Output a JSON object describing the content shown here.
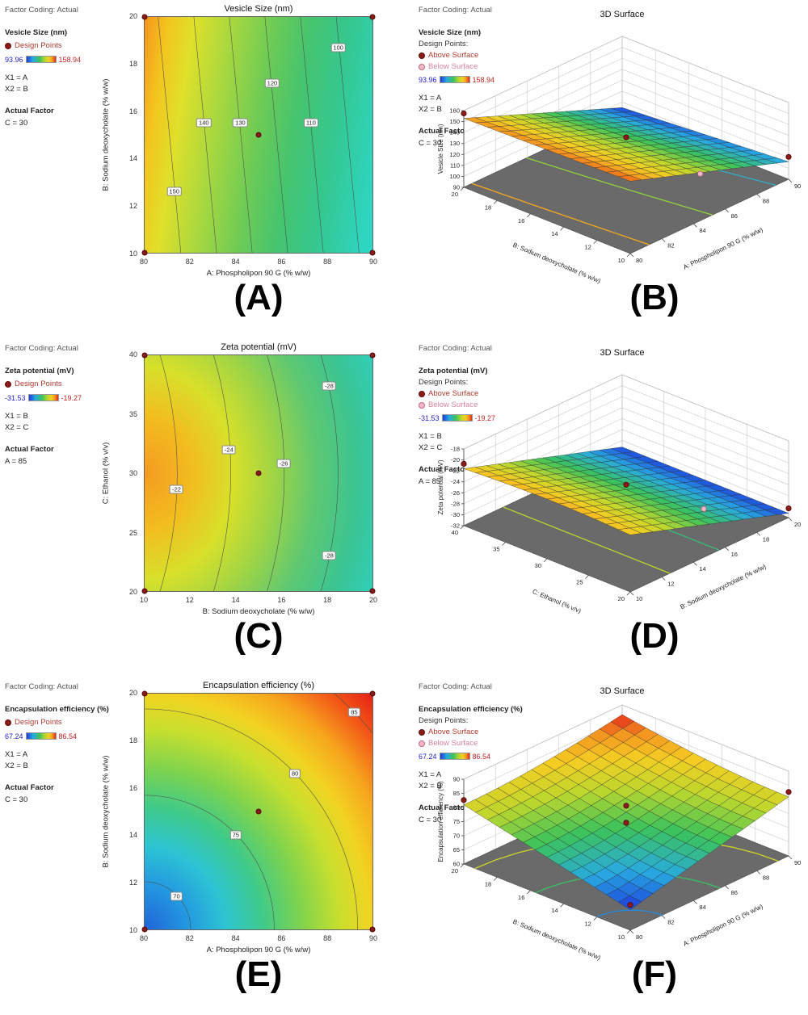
{
  "colors": {
    "design_point": "#8b1a1a",
    "below_surface_point": "#f2b8c6",
    "scale_min_text": "#2424c8",
    "scale_max_text": "#c22222",
    "floor_plane": "#6a6a6a"
  },
  "colormap": [
    "#1e3cdc",
    "#28aae1",
    "#3cc35a",
    "#bed72d",
    "#f5cd23",
    "#f39620",
    "#e62319"
  ],
  "chart_data": [
    {
      "type": "heatmap",
      "subtype": "contour-2d",
      "panel_label": "(A)",
      "title": "Vesicle Size (nm)",
      "legend": {
        "factor_coding": "Factor Coding: Actual",
        "response": "Vesicle Size (nm)",
        "design_points": "Design Points",
        "scale_min": "93.96",
        "scale_max": "158.94",
        "x1": "X1 = A",
        "x2": "X2 = B",
        "actual_factor_label": "Actual Factor",
        "actual_factor": "C = 30"
      },
      "xaxis": {
        "label": "A: Phospholipon 90 G (% w/w)",
        "range": [
          80,
          90
        ],
        "ticks": [
          "80",
          "82",
          "84",
          "86",
          "88",
          "90"
        ]
      },
      "yaxis": {
        "label": "B: Sodium deoxycholate (% w/w)",
        "range": [
          10,
          20
        ],
        "ticks": [
          "10",
          "12",
          "14",
          "16",
          "18",
          "20"
        ]
      },
      "value_range": [
        93.96,
        158.94
      ],
      "contour_levels": [
        150,
        140,
        130,
        120,
        110,
        100
      ],
      "contour_labels": [
        {
          "value": "150",
          "x": 13,
          "y": 74
        },
        {
          "value": "140",
          "x": 26,
          "y": 45
        },
        {
          "value": "130",
          "x": 42,
          "y": 45
        },
        {
          "value": "120",
          "x": 56,
          "y": 28
        },
        {
          "value": "110",
          "x": 73,
          "y": 45
        },
        {
          "value": "100",
          "x": 85,
          "y": 13
        }
      ],
      "design_points": [
        [
          80,
          10
        ],
        [
          80,
          20
        ],
        [
          90,
          10
        ],
        [
          90,
          20
        ],
        [
          85,
          15
        ]
      ]
    },
    {
      "type": "heatmap",
      "subtype": "3d-surface",
      "panel_label": "(B)",
      "title": "3D Surface",
      "legend": {
        "factor_coding": "Factor Coding: Actual",
        "response": "Vesicle Size (nm)",
        "design_points": "Design Points:",
        "above_surface": "Above Surface",
        "below_surface": "Below Surface",
        "scale_min": "93.96",
        "scale_max": "158.94",
        "x1": "X1 = A",
        "x2": "X2 = B",
        "actual_factor_label": "Actual Factor",
        "actual_factor": "C = 30"
      },
      "axis_right": {
        "label": "A: Phospholipon 90 G (% w/w)",
        "ticks": [
          "80",
          "82",
          "84",
          "86",
          "88",
          "90"
        ]
      },
      "axis_left": {
        "label": "B: Sodium deoxycholate (% w/w)",
        "ticks": [
          "10",
          "12",
          "14",
          "16",
          "18",
          "20"
        ]
      },
      "axis_z": {
        "label": "Vesicle Size (nm)",
        "ticks": [
          "90",
          "100",
          "110",
          "120",
          "130",
          "140",
          "150",
          "160"
        ]
      },
      "value_range": [
        93.96,
        158.94
      ],
      "corner_values_est": {
        "A80_B10": 156,
        "A80_B20": 153,
        "A90_B10": 106,
        "A90_B20": 95
      },
      "design_points": [
        [
          80,
          10
        ],
        [
          80,
          20
        ],
        [
          90,
          10
        ],
        [
          90,
          20
        ],
        [
          85,
          15
        ]
      ]
    },
    {
      "type": "heatmap",
      "subtype": "contour-2d",
      "panel_label": "(C)",
      "title": "Zeta potential (mV)",
      "legend": {
        "factor_coding": "Factor Coding: Actual",
        "response": "Zeta potential (mV)",
        "design_points": "Design Points",
        "scale_min": "-31.53",
        "scale_max": "-19.27",
        "x1": "X1 = B",
        "x2": "X2 = C",
        "actual_factor_label": "Actual Factor",
        "actual_factor": "A = 85"
      },
      "xaxis": {
        "label": "B: Sodium deoxycholate (% w/w)",
        "range": [
          10,
          20
        ],
        "ticks": [
          "10",
          "12",
          "14",
          "16",
          "18",
          "20"
        ]
      },
      "yaxis": {
        "label": "C: Ethanol (% v/v)",
        "range": [
          20,
          40
        ],
        "ticks": [
          "20",
          "25",
          "30",
          "35",
          "40"
        ]
      },
      "value_range": [
        -31.53,
        -19.27
      ],
      "contour_levels": [
        -22,
        -24,
        -26,
        -28
      ],
      "contour_labels": [
        {
          "value": "-22",
          "x": 14,
          "y": 57
        },
        {
          "value": "-24",
          "x": 37,
          "y": 40
        },
        {
          "value": "-26",
          "x": 61,
          "y": 46
        },
        {
          "value": "-28",
          "x": 81,
          "y": 13
        },
        {
          "value": "-28",
          "x": 81,
          "y": 85
        }
      ],
      "design_points": [
        [
          10,
          20
        ],
        [
          10,
          40
        ],
        [
          20,
          20
        ],
        [
          20,
          40
        ],
        [
          15,
          30
        ]
      ]
    },
    {
      "type": "heatmap",
      "subtype": "3d-surface",
      "panel_label": "(D)",
      "title": "3D Surface",
      "legend": {
        "factor_coding": "Factor Coding: Actual",
        "response": "Zeta potential (mV)",
        "design_points": "Design Points:",
        "above_surface": "Above Surface",
        "below_surface": "Below Surface",
        "scale_min": "-31.53",
        "scale_max": "-19.27",
        "x1": "X1 = B",
        "x2": "X2 = C",
        "actual_factor_label": "Actual Factor",
        "actual_factor": "A = 85"
      },
      "axis_right": {
        "label": "B: Sodium deoxycholate (% w/w)",
        "ticks": [
          "10",
          "12",
          "14",
          "16",
          "18",
          "20"
        ]
      },
      "axis_left": {
        "label": "C: Ethanol (% v/v)",
        "ticks": [
          "20",
          "25",
          "30",
          "35",
          "40"
        ]
      },
      "axis_z": {
        "label": "Zeta potential (mV)",
        "ticks": [
          "-32",
          "-30",
          "-28",
          "-26",
          "-24",
          "-22",
          "-20",
          "-18"
        ]
      },
      "value_range": [
        -31.53,
        -19.27
      ],
      "corner_values_est": {
        "B10": -21.6,
        "B20": -31.2
      },
      "design_points": [
        [
          10,
          20
        ],
        [
          10,
          40
        ],
        [
          20,
          20
        ],
        [
          20,
          40
        ],
        [
          15,
          30
        ]
      ]
    },
    {
      "type": "heatmap",
      "subtype": "contour-2d",
      "panel_label": "(E)",
      "title": "Encapsulation efficiency (%)",
      "legend": {
        "factor_coding": "Factor Coding: Actual",
        "response": "Encapsulation efficiency (%)",
        "design_points": "Design Points",
        "scale_min": "67.24",
        "scale_max": "86.54",
        "x1": "X1 = A",
        "x2": "X2 = B",
        "actual_factor_label": "Actual Factor",
        "actual_factor": "C = 30"
      },
      "xaxis": {
        "label": "A: Phospholipon 90 G (% w/w)",
        "range": [
          80,
          90
        ],
        "ticks": [
          "80",
          "82",
          "84",
          "86",
          "88",
          "90"
        ]
      },
      "yaxis": {
        "label": "B: Sodium deoxycholate (% w/w)",
        "range": [
          10,
          20
        ],
        "ticks": [
          "10",
          "12",
          "14",
          "16",
          "18",
          "20"
        ]
      },
      "value_range": [
        67.24,
        86.54
      ],
      "contour_levels": [
        70,
        75,
        80,
        85
      ],
      "contour_labels": [
        {
          "value": "70",
          "x": 14,
          "y": 86
        },
        {
          "value": "75",
          "x": 40,
          "y": 60
        },
        {
          "value": "80",
          "x": 66,
          "y": 34
        },
        {
          "value": "85",
          "x": 92,
          "y": 8
        }
      ],
      "design_points": [
        [
          80,
          10
        ],
        [
          80,
          20
        ],
        [
          90,
          10
        ],
        [
          90,
          20
        ],
        [
          85,
          15
        ]
      ]
    },
    {
      "type": "heatmap",
      "subtype": "3d-surface",
      "panel_label": "(F)",
      "title": "3D Surface",
      "legend": {
        "factor_coding": "Factor Coding: Actual",
        "response": "Encapsulation efficiency (%)",
        "design_points": "Design Points:",
        "above_surface": "Above Surface",
        "below_surface": "Below Surface",
        "scale_min": "67.24",
        "scale_max": "86.54",
        "x1": "X1 = A",
        "x2": "X2 = B",
        "actual_factor_label": "Actual Factor",
        "actual_factor": "C = 30"
      },
      "axis_right": {
        "label": "A: Phospholipon 90 G (% w/w)",
        "ticks": [
          "80",
          "82",
          "84",
          "86",
          "88",
          "90"
        ]
      },
      "axis_left": {
        "label": "B: Sodium deoxycholate (% w/w)",
        "ticks": [
          "10",
          "12",
          "14",
          "16",
          "18",
          "20"
        ]
      },
      "axis_z": {
        "label": "Encapsulation efficiency (%)",
        "ticks": [
          "60",
          "65",
          "70",
          "75",
          "80",
          "85",
          "90"
        ]
      },
      "value_range": [
        67.24,
        86.54
      ],
      "corner_values_est": {
        "A80_B10": 67.2,
        "A80_B20": 81,
        "A90_B10": 81,
        "A90_B20": 86.5
      },
      "design_points": [
        [
          80,
          10
        ],
        [
          80,
          20
        ],
        [
          90,
          10
        ],
        [
          90,
          20
        ],
        [
          85,
          15
        ]
      ]
    }
  ]
}
